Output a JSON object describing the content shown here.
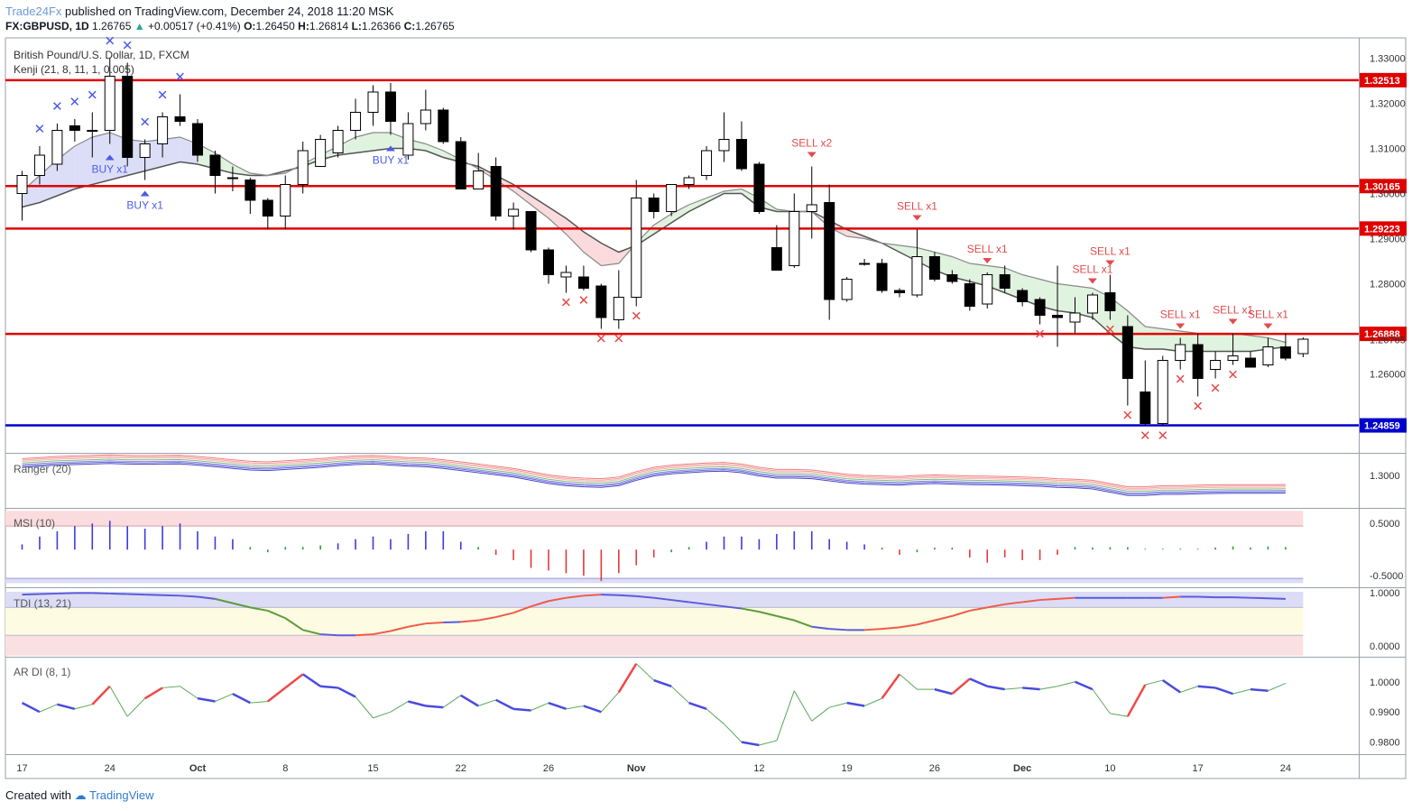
{
  "header": {
    "publisher": "Trade24Fx",
    "published_text": "published on TradingView.com, December 24, 2018 11:20 MSK",
    "symbol": "FX:GBPUSD, 1D",
    "last": "1.26765",
    "change": "+0.00517 (+0.41%)",
    "open_label": "O:",
    "open": "1.26450",
    "high_label": "H:",
    "high": "1.26814",
    "low_label": "L:",
    "low": "1.26366",
    "close_label": "C:",
    "close": "1.26765"
  },
  "footer": {
    "created_with": "Created with",
    "brand": "TradingView"
  },
  "colors": {
    "up": "#ffffff",
    "down": "#000000",
    "level": "#e00000",
    "support": "#0000cc",
    "buy": "#4d5be8",
    "sell": "#e34b4b"
  },
  "chart_data": {
    "type": "candlestick",
    "title": "British Pound/U.S. Dollar, 1D, FXCM",
    "indicator_label": "Kenji (21, 8, 11, 1, 0.005)",
    "x_ticks": [
      {
        "i": 0,
        "label": "17"
      },
      {
        "i": 5,
        "label": "24"
      },
      {
        "i": 10,
        "label": "Oct"
      },
      {
        "i": 15,
        "label": "8"
      },
      {
        "i": 20,
        "label": "15"
      },
      {
        "i": 25,
        "label": "22"
      },
      {
        "i": 30,
        "label": "26"
      },
      {
        "i": 35,
        "label": "Nov"
      },
      {
        "i": 42,
        "label": "12"
      },
      {
        "i": 47,
        "label": "19"
      },
      {
        "i": 52,
        "label": "26"
      },
      {
        "i": 57,
        "label": "Dec"
      },
      {
        "i": 62,
        "label": "10"
      },
      {
        "i": 67,
        "label": "17"
      },
      {
        "i": 72,
        "label": "24"
      }
    ],
    "y_ticks": [
      "1.33000",
      "1.32000",
      "1.31000",
      "1.30000",
      "1.29000",
      "1.28000",
      "1.26000"
    ],
    "ylim": [
      1.2425,
      1.3345
    ],
    "levels": [
      {
        "value": 1.32513,
        "label": "1.32513",
        "color": "#e00000"
      },
      {
        "value": 1.30165,
        "label": "1.30165",
        "color": "#e00000"
      },
      {
        "value": 1.29223,
        "label": "1.29223",
        "color": "#e00000"
      },
      {
        "value": 1.26888,
        "label": "1.26888",
        "color": "#e00000"
      },
      {
        "value": 1.24859,
        "label": "1.24859",
        "color": "#0000cc"
      }
    ],
    "last_price_label": "1.26765",
    "ohlc": [
      [
        1.3,
        1.305,
        1.294,
        1.304
      ],
      [
        1.304,
        1.3105,
        1.302,
        1.3085
      ],
      [
        1.3065,
        1.3155,
        1.305,
        1.314
      ],
      [
        1.315,
        1.3165,
        1.3115,
        1.314
      ],
      [
        1.314,
        1.318,
        1.308,
        1.314
      ],
      [
        1.314,
        1.33,
        1.311,
        1.326
      ],
      [
        1.326,
        1.329,
        1.306,
        1.308
      ],
      [
        1.308,
        1.312,
        1.303,
        1.311
      ],
      [
        1.311,
        1.318,
        1.308,
        1.317
      ],
      [
        1.317,
        1.322,
        1.315,
        1.316
      ],
      [
        1.3155,
        1.3165,
        1.307,
        1.3085
      ],
      [
        1.3085,
        1.3095,
        1.3,
        1.304
      ],
      [
        1.3035,
        1.306,
        1.3005,
        1.3035
      ],
      [
        1.303,
        1.3035,
        1.2955,
        1.2985
      ],
      [
        1.2985,
        1.299,
        1.292,
        1.295
      ],
      [
        1.295,
        1.304,
        1.292,
        1.302
      ],
      [
        1.302,
        1.3115,
        1.3,
        1.3095
      ],
      [
        1.306,
        1.313,
        1.306,
        1.312
      ],
      [
        1.309,
        1.315,
        1.308,
        1.314
      ],
      [
        1.314,
        1.321,
        1.312,
        1.318
      ],
      [
        1.318,
        1.324,
        1.315,
        1.3225
      ],
      [
        1.3225,
        1.3245,
        1.313,
        1.316
      ],
      [
        1.3085,
        1.318,
        1.3075,
        1.3155
      ],
      [
        1.3155,
        1.323,
        1.314,
        1.3185
      ],
      [
        1.3185,
        1.319,
        1.311,
        1.3115
      ],
      [
        1.3115,
        1.3125,
        1.301,
        1.301
      ],
      [
        1.301,
        1.309,
        1.301,
        1.305
      ],
      [
        1.306,
        1.308,
        1.294,
        1.295
      ],
      [
        1.295,
        1.298,
        1.292,
        1.2965
      ],
      [
        1.296,
        1.296,
        1.287,
        1.2875
      ],
      [
        1.2875,
        1.288,
        1.28,
        1.282
      ],
      [
        1.2815,
        1.284,
        1.278,
        1.2825
      ],
      [
        1.2815,
        1.284,
        1.2785,
        1.279
      ],
      [
        1.2795,
        1.28,
        1.27,
        1.2725
      ],
      [
        1.272,
        1.283,
        1.27,
        1.277
      ],
      [
        1.277,
        1.303,
        1.275,
        1.299
      ],
      [
        1.299,
        1.3,
        1.2945,
        1.296
      ],
      [
        1.296,
        1.302,
        1.295,
        1.302
      ],
      [
        1.302,
        1.304,
        1.301,
        1.3035
      ],
      [
        1.304,
        1.3105,
        1.303,
        1.3095
      ],
      [
        1.3095,
        1.318,
        1.307,
        1.312
      ],
      [
        1.312,
        1.316,
        1.305,
        1.3055
      ],
      [
        1.3065,
        1.307,
        1.2955,
        1.296
      ],
      [
        1.288,
        1.293,
        1.283,
        1.283
      ],
      [
        1.284,
        1.3,
        1.2835,
        1.296
      ],
      [
        1.296,
        1.306,
        1.29,
        1.2975
      ],
      [
        1.298,
        1.302,
        1.272,
        1.2765
      ],
      [
        1.2765,
        1.2815,
        1.276,
        1.281
      ],
      [
        1.2845,
        1.2855,
        1.284,
        1.2845
      ],
      [
        1.2845,
        1.2855,
        1.278,
        1.2785
      ],
      [
        1.2785,
        1.279,
        1.277,
        1.278
      ],
      [
        1.2775,
        1.292,
        1.277,
        1.286
      ],
      [
        1.286,
        1.287,
        1.2805,
        1.281
      ],
      [
        1.282,
        1.283,
        1.28,
        1.2805
      ],
      [
        1.28,
        1.281,
        1.274,
        1.275
      ],
      [
        1.2755,
        1.2825,
        1.2745,
        1.282
      ],
      [
        1.282,
        1.284,
        1.278,
        1.279
      ],
      [
        1.2785,
        1.279,
        1.275,
        1.276
      ],
      [
        1.2765,
        1.277,
        1.271,
        1.273
      ],
      [
        1.273,
        1.284,
        1.266,
        1.2725
      ],
      [
        1.2715,
        1.277,
        1.269,
        1.2735
      ],
      [
        1.2735,
        1.278,
        1.272,
        1.2775
      ],
      [
        1.278,
        1.282,
        1.272,
        1.274
      ],
      [
        1.2705,
        1.273,
        1.253,
        1.259
      ],
      [
        1.256,
        1.263,
        1.2485,
        1.249
      ],
      [
        1.249,
        1.264,
        1.2485,
        1.263
      ],
      [
        1.263,
        1.268,
        1.261,
        1.2665
      ],
      [
        1.2665,
        1.269,
        1.255,
        1.259
      ],
      [
        1.261,
        1.265,
        1.259,
        1.263
      ],
      [
        1.263,
        1.269,
        1.262,
        1.264
      ],
      [
        1.2635,
        1.265,
        1.2615,
        1.2615
      ],
      [
        1.262,
        1.268,
        1.2615,
        1.266
      ],
      [
        1.266,
        1.269,
        1.263,
        1.2635
      ],
      [
        1.2645,
        1.2681,
        1.2637,
        1.2677
      ]
    ],
    "cloud": {
      "fast": [
        1.3005,
        1.304,
        1.3075,
        1.3105,
        1.3125,
        1.3135,
        1.312,
        1.3115,
        1.312,
        1.3125,
        1.311,
        1.309,
        1.3065,
        1.3045,
        1.304,
        1.3045,
        1.3065,
        1.3085,
        1.3105,
        1.3125,
        1.3135,
        1.3135,
        1.312,
        1.311,
        1.3095,
        1.3075,
        1.3055,
        1.303,
        1.3005,
        1.2975,
        1.2945,
        1.291,
        1.287,
        1.284,
        1.2845,
        1.289,
        1.293,
        1.2955,
        1.2975,
        1.299,
        1.3005,
        1.301,
        1.299,
        1.2965,
        1.296,
        1.296,
        1.2925,
        1.2905,
        1.29,
        1.289,
        1.2885,
        1.288,
        1.287,
        1.286,
        1.2845,
        1.284,
        1.2835,
        1.282,
        1.281,
        1.28,
        1.2795,
        1.279,
        1.277,
        1.274,
        1.2705,
        1.27,
        1.2695,
        1.269,
        1.269,
        1.269,
        1.2685,
        1.268,
        1.267
      ],
      "slow": [
        1.297,
        1.298,
        1.2995,
        1.301,
        1.302,
        1.303,
        1.304,
        1.305,
        1.306,
        1.307,
        1.3065,
        1.3055,
        1.3045,
        1.304,
        1.304,
        1.305,
        1.306,
        1.3075,
        1.3085,
        1.309,
        1.3095,
        1.31,
        1.31,
        1.3095,
        1.308,
        1.307,
        1.306,
        1.304,
        1.302,
        1.2995,
        1.297,
        1.2945,
        1.2915,
        1.289,
        1.287,
        1.2885,
        1.291,
        1.2935,
        1.296,
        1.298,
        1.3,
        1.3,
        1.297,
        1.296,
        1.296,
        1.296,
        1.294,
        1.292,
        1.2905,
        1.289,
        1.287,
        1.285,
        1.283,
        1.2815,
        1.2805,
        1.2795,
        1.278,
        1.2765,
        1.275,
        1.274,
        1.2735,
        1.2725,
        1.269,
        1.266,
        1.2655,
        1.2655,
        1.265,
        1.265,
        1.265,
        1.265,
        1.265,
        1.2655,
        1.266
      ]
    },
    "signals": [
      {
        "i": 5,
        "type": "buy",
        "label": "BUY x1"
      },
      {
        "i": 7,
        "type": "buy",
        "label": "BUY x1"
      },
      {
        "i": 21,
        "type": "buy",
        "label": "BUY x1"
      },
      {
        "i": 45,
        "type": "sell",
        "label": "SELL x2"
      },
      {
        "i": 51,
        "type": "sell",
        "label": "SELL x1"
      },
      {
        "i": 55,
        "type": "sell",
        "label": "SELL x1"
      },
      {
        "i": 61,
        "type": "sell",
        "label": "SELL x1"
      },
      {
        "i": 62,
        "type": "sell",
        "label": "SELL x1"
      },
      {
        "i": 66,
        "type": "sell",
        "label": "SELL x1"
      },
      {
        "i": 69,
        "type": "sell",
        "label": "SELL x1"
      },
      {
        "i": 71,
        "type": "sell",
        "label": "SELL x1"
      }
    ],
    "crosses": [
      {
        "i": 1,
        "type": "buy"
      },
      {
        "i": 2,
        "type": "buy"
      },
      {
        "i": 3,
        "type": "buy"
      },
      {
        "i": 4,
        "type": "buy"
      },
      {
        "i": 5,
        "type": "buy"
      },
      {
        "i": 6,
        "type": "buy"
      },
      {
        "i": 7,
        "type": "buy"
      },
      {
        "i": 8,
        "type": "buy"
      },
      {
        "i": 9,
        "type": "buy"
      },
      {
        "i": 31,
        "type": "sell"
      },
      {
        "i": 32,
        "type": "sell"
      },
      {
        "i": 33,
        "type": "sell"
      },
      {
        "i": 34,
        "type": "sell"
      },
      {
        "i": 35,
        "type": "sell"
      },
      {
        "i": 58,
        "type": "sell"
      },
      {
        "i": 62,
        "type": "sell"
      },
      {
        "i": 63,
        "type": "sell"
      },
      {
        "i": 64,
        "type": "sell"
      },
      {
        "i": 65,
        "type": "sell"
      },
      {
        "i": 66,
        "type": "sell"
      },
      {
        "i": 67,
        "type": "sell"
      },
      {
        "i": 68,
        "type": "sell"
      },
      {
        "i": 69,
        "type": "sell"
      }
    ],
    "ranger": {
      "label": "Ranger (20)",
      "tick": "1.3000",
      "ylim": [
        1.27,
        1.32
      ],
      "mid": [
        1.311,
        1.312,
        1.313,
        1.3135,
        1.314,
        1.3145,
        1.314,
        1.3138,
        1.314,
        1.3142,
        1.313,
        1.3115,
        1.31,
        1.3085,
        1.308,
        1.309,
        1.31,
        1.311,
        1.3125,
        1.3135,
        1.314,
        1.313,
        1.312,
        1.3115,
        1.31,
        1.308,
        1.306,
        1.304,
        1.302,
        1.299,
        1.296,
        1.294,
        1.293,
        1.2925,
        1.294,
        1.299,
        1.303,
        1.305,
        1.306,
        1.307,
        1.3075,
        1.306,
        1.303,
        1.301,
        1.301,
        1.3005,
        1.2985,
        1.2965,
        1.2955,
        1.295,
        1.2945,
        1.2955,
        1.296,
        1.2955,
        1.295,
        1.2948,
        1.2945,
        1.294,
        1.2935,
        1.2925,
        1.292,
        1.291,
        1.288,
        1.285,
        1.285,
        1.286,
        1.286,
        1.2865,
        1.2868,
        1.287,
        1.287,
        1.287,
        1.2872
      ]
    },
    "msi": {
      "label": "MSI (10)",
      "ticks": [
        "0.5000",
        "-0.5000"
      ],
      "ylim": [
        -0.72,
        0.78
      ],
      "upper": 0.45,
      "lower": -0.55,
      "values": [
        0.1,
        0.25,
        0.35,
        0.45,
        0.5,
        0.55,
        0.45,
        0.4,
        0.45,
        0.5,
        0.35,
        0.25,
        0.2,
        0.05,
        -0.05,
        0.05,
        0.05,
        0.08,
        0.12,
        0.2,
        0.25,
        0.2,
        0.3,
        0.35,
        0.35,
        0.15,
        0.05,
        -0.1,
        -0.2,
        -0.35,
        -0.4,
        -0.45,
        -0.5,
        -0.6,
        -0.45,
        -0.3,
        -0.15,
        -0.05,
        0.05,
        0.15,
        0.25,
        0.25,
        0.2,
        0.3,
        0.35,
        0.35,
        0.2,
        0.15,
        0.1,
        0.02,
        -0.1,
        -0.05,
        0.02,
        0.02,
        -0.15,
        -0.25,
        -0.15,
        -0.2,
        -0.2,
        -0.1,
        0.05,
        0.04,
        0.03,
        0.03,
        0,
        0,
        0,
        0,
        0.04,
        0.06,
        0.04,
        0.06,
        0.05
      ]
    },
    "tdi": {
      "label": "TDI (13, 21)",
      "ticks": [
        "1.0000",
        "0.0000"
      ],
      "ylim": [
        -0.2,
        1.08
      ],
      "values": [
        0.96,
        0.97,
        0.98,
        0.99,
        0.99,
        0.98,
        0.97,
        0.96,
        0.95,
        0.94,
        0.92,
        0.88,
        0.8,
        0.72,
        0.66,
        0.52,
        0.3,
        0.22,
        0.2,
        0.2,
        0.22,
        0.28,
        0.36,
        0.42,
        0.44,
        0.45,
        0.48,
        0.54,
        0.62,
        0.74,
        0.84,
        0.9,
        0.94,
        0.96,
        0.95,
        0.93,
        0.9,
        0.86,
        0.82,
        0.78,
        0.74,
        0.7,
        0.64,
        0.56,
        0.48,
        0.36,
        0.32,
        0.3,
        0.3,
        0.32,
        0.35,
        0.4,
        0.48,
        0.56,
        0.66,
        0.72,
        0.78,
        0.82,
        0.86,
        0.88,
        0.9,
        0.9,
        0.9,
        0.9,
        0.9,
        0.9,
        0.92,
        0.92,
        0.91,
        0.91,
        0.9,
        0.89,
        0.88
      ]
    },
    "ardi": {
      "label": "AR DI (8, 1)",
      "ticks": [
        "1.0000",
        "0.9900",
        "0.9800"
      ],
      "ylim": [
        0.976,
        1.008
      ],
      "values": [
        0.993,
        0.99,
        0.9925,
        0.991,
        0.9925,
        0.9985,
        0.9885,
        0.9945,
        0.998,
        0.9985,
        0.9945,
        0.9935,
        0.996,
        0.993,
        0.9935,
        0.998,
        1.0025,
        0.9985,
        0.998,
        0.995,
        0.988,
        0.99,
        0.9935,
        0.992,
        0.9915,
        0.9955,
        0.992,
        0.994,
        0.991,
        0.9905,
        0.993,
        0.991,
        0.992,
        0.99,
        0.9965,
        1.006,
        1.0005,
        0.9985,
        0.993,
        0.991,
        0.986,
        0.98,
        0.979,
        0.9805,
        0.997,
        0.987,
        0.9915,
        0.993,
        0.992,
        0.9945,
        1.0025,
        0.9975,
        0.9975,
        0.996,
        1.001,
        0.9985,
        0.9975,
        0.998,
        0.9975,
        0.9985,
        1.0,
        0.9975,
        0.9895,
        0.9885,
        0.999,
        1.0005,
        0.9965,
        0.9985,
        0.998,
        0.996,
        0.9975,
        0.997,
        0.9995
      ]
    }
  }
}
